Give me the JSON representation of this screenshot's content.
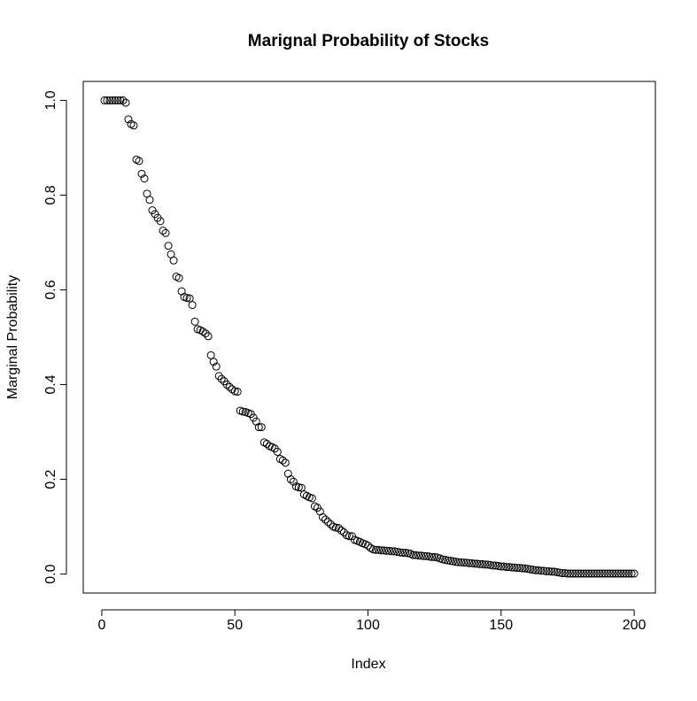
{
  "chart_data": {
    "type": "scatter",
    "title": "Marignal Probability of Stocks",
    "x_label": "Index",
    "y_label": "Marginal Probability",
    "color": "#000000",
    "x": [
      1,
      2,
      3,
      4,
      5,
      6,
      7,
      8,
      9,
      10,
      11,
      12,
      13,
      14,
      15,
      16,
      17,
      18,
      19,
      20,
      21,
      22,
      23,
      24,
      25,
      26,
      27,
      28,
      29,
      30,
      31,
      32,
      33,
      34,
      35,
      36,
      37,
      38,
      39,
      40,
      41,
      42,
      43,
      44,
      45,
      46,
      47,
      48,
      49,
      50,
      51,
      52,
      53,
      54,
      55,
      56,
      57,
      58,
      59,
      60,
      61,
      62,
      63,
      64,
      65,
      66,
      67,
      68,
      69,
      70,
      71,
      72,
      73,
      74,
      75,
      76,
      77,
      78,
      79,
      80,
      81,
      82,
      83,
      84,
      85,
      86,
      87,
      88,
      89,
      90,
      91,
      92,
      93,
      94,
      95,
      96,
      97,
      98,
      99,
      100,
      101,
      102,
      103,
      104,
      105,
      106,
      107,
      108,
      109,
      110,
      111,
      112,
      113,
      114,
      115,
      116,
      117,
      118,
      119,
      120,
      121,
      122,
      123,
      124,
      125,
      126,
      127,
      128,
      129,
      130,
      131,
      132,
      133,
      134,
      135,
      136,
      137,
      138,
      139,
      140,
      141,
      142,
      143,
      144,
      145,
      146,
      147,
      148,
      149,
      150,
      151,
      152,
      153,
      154,
      155,
      156,
      157,
      158,
      159,
      160,
      161,
      162,
      163,
      164,
      165,
      166,
      167,
      168,
      169,
      170,
      171,
      172,
      173,
      174,
      175,
      176,
      177,
      178,
      179,
      180,
      181,
      182,
      183,
      184,
      185,
      186,
      187,
      188,
      189,
      190,
      191,
      192,
      193,
      194,
      195,
      196,
      197,
      198,
      199,
      200
    ],
    "values": [
      1.0,
      1.0,
      1.0,
      1.0,
      1.0,
      1.0,
      1.0,
      1.0,
      0.995,
      0.96,
      0.95,
      0.947,
      0.875,
      0.872,
      0.845,
      0.835,
      0.803,
      0.79,
      0.768,
      0.76,
      0.752,
      0.745,
      0.725,
      0.72,
      0.693,
      0.675,
      0.662,
      0.628,
      0.625,
      0.597,
      0.585,
      0.583,
      0.582,
      0.568,
      0.533,
      0.517,
      0.515,
      0.512,
      0.508,
      0.502,
      0.462,
      0.448,
      0.438,
      0.418,
      0.412,
      0.407,
      0.4,
      0.395,
      0.39,
      0.386,
      0.385,
      0.345,
      0.343,
      0.342,
      0.34,
      0.338,
      0.33,
      0.322,
      0.31,
      0.31,
      0.278,
      0.275,
      0.27,
      0.268,
      0.265,
      0.258,
      0.243,
      0.24,
      0.235,
      0.212,
      0.2,
      0.195,
      0.185,
      0.183,
      0.182,
      0.168,
      0.165,
      0.162,
      0.16,
      0.143,
      0.14,
      0.132,
      0.12,
      0.115,
      0.11,
      0.105,
      0.1,
      0.098,
      0.097,
      0.092,
      0.088,
      0.082,
      0.08,
      0.08,
      0.072,
      0.07,
      0.068,
      0.065,
      0.063,
      0.06,
      0.055,
      0.052,
      0.051,
      0.051,
      0.05,
      0.05,
      0.049,
      0.049,
      0.048,
      0.048,
      0.047,
      0.046,
      0.045,
      0.045,
      0.044,
      0.043,
      0.04,
      0.04,
      0.039,
      0.039,
      0.038,
      0.038,
      0.037,
      0.036,
      0.036,
      0.035,
      0.033,
      0.031,
      0.03,
      0.029,
      0.028,
      0.027,
      0.026,
      0.025,
      0.025,
      0.024,
      0.024,
      0.023,
      0.023,
      0.022,
      0.022,
      0.021,
      0.021,
      0.02,
      0.02,
      0.019,
      0.018,
      0.018,
      0.017,
      0.016,
      0.016,
      0.015,
      0.015,
      0.014,
      0.014,
      0.013,
      0.013,
      0.012,
      0.012,
      0.011,
      0.01,
      0.009,
      0.008,
      0.008,
      0.007,
      0.007,
      0.006,
      0.006,
      0.005,
      0.005,
      0.004,
      0.003,
      0.002,
      0.002,
      0.001,
      0.001,
      0.001,
      0.001,
      0.001,
      0.001,
      0.001,
      0.001,
      0.001,
      0.001,
      0.001,
      0.001,
      0.001,
      0.001,
      0.001,
      0.001,
      0.001,
      0.001,
      0.001,
      0.001,
      0.001,
      0.001,
      0.001,
      0.001,
      0.001,
      0.001
    ],
    "xlim": [
      -6.96,
      207.96
    ],
    "ylim": [
      -0.04,
      1.04
    ],
    "xticks": [
      0,
      50,
      100,
      150,
      200
    ],
    "yticks": [
      {
        "value": 0,
        "label": "0.0"
      },
      {
        "value": 0.2,
        "label": "0.2"
      },
      {
        "value": 0.4,
        "label": "0.4"
      },
      {
        "value": 0.6,
        "label": "0.6"
      },
      {
        "value": 0.8,
        "label": "0.8"
      },
      {
        "value": 1,
        "label": "1.0"
      }
    ]
  }
}
